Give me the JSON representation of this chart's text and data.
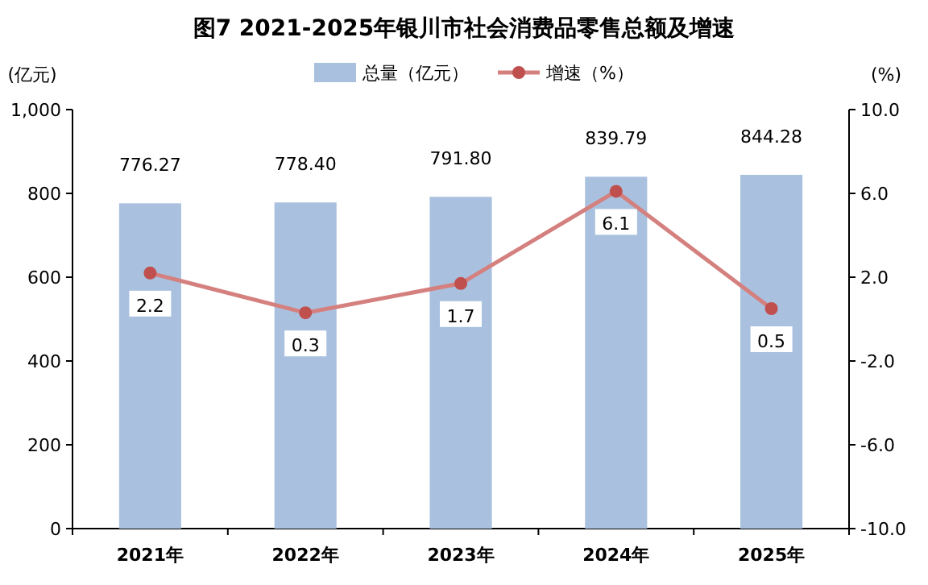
{
  "chart_data": {
    "type": "bar",
    "title": "图7  2021-2025年银川市社会消费品零售总额及增速",
    "ylabel": "(亿元)",
    "y2label": "(%)",
    "categories": [
      "2021年",
      "2022年",
      "2023年",
      "2024年",
      "2025年"
    ],
    "series": [
      {
        "name": "总量（亿元）",
        "color": "#a9c1df",
        "values": [
          776.27,
          778.4,
          791.8,
          839.79,
          844.28
        ],
        "value_labels": [
          "776.27",
          "778.40",
          "791.80",
          "839.79",
          "844.28"
        ]
      },
      {
        "name": "增速（%）",
        "type": "line",
        "axis": "y2",
        "color": "#d4807f",
        "values": [
          2.2,
          0.3,
          1.7,
          6.1,
          0.5
        ]
      }
    ],
    "ylim": [
      0,
      1000
    ],
    "yticks": [
      0,
      200,
      400,
      600,
      800,
      {
        "value": 1000,
        "label": "1,000"
      }
    ],
    "y2lim": [
      -10,
      10
    ],
    "y2ticks": [
      {
        "value": -10,
        "label": "-10.0"
      },
      {
        "value": -6,
        "label": "-6.0"
      },
      {
        "value": -2,
        "label": "-2.0"
      },
      {
        "value": 2,
        "label": "2.0"
      },
      {
        "value": 6,
        "label": "6.0"
      },
      {
        "value": 10,
        "label": "10.0"
      }
    ],
    "data_labels": true,
    "legend": "top",
    "marker": "circle"
  }
}
